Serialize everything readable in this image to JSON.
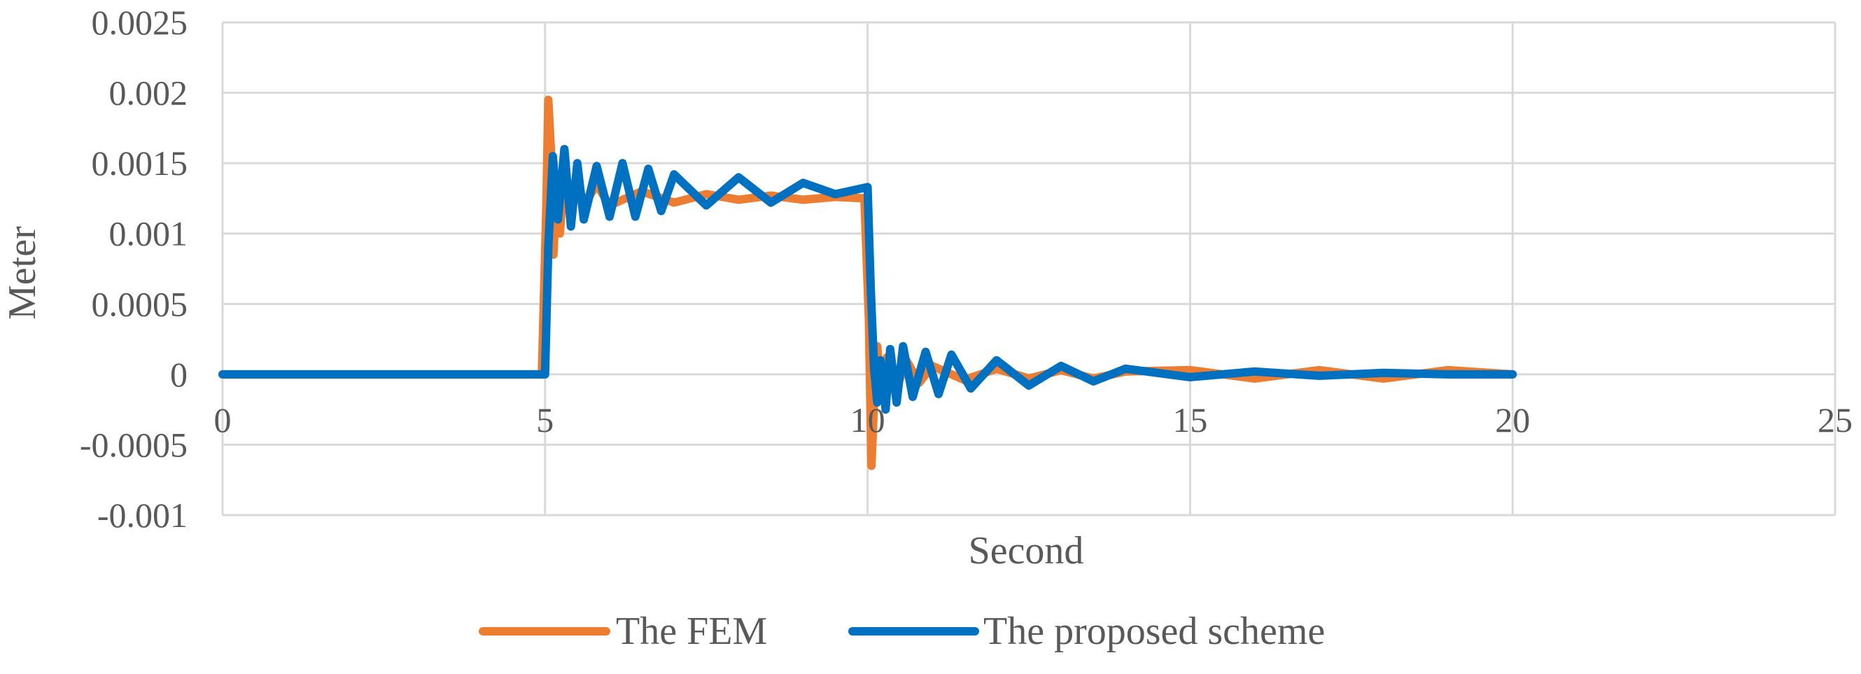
{
  "chart_data": {
    "type": "line",
    "title": "",
    "xlabel": "Second",
    "ylabel": "Meter",
    "xlim": [
      0,
      25
    ],
    "ylim": [
      -0.001,
      0.0025
    ],
    "xticks": [
      0,
      5,
      10,
      15,
      20,
      25
    ],
    "xtick_labels": [
      "0",
      "5",
      "10",
      "15",
      "20",
      "25"
    ],
    "yticks": [
      -0.001,
      -0.0005,
      0,
      0.0005,
      0.001,
      0.0015,
      0.002,
      0.0025
    ],
    "ytick_labels": [
      "-0.001",
      "-0.0005",
      "0",
      "0.0005",
      "0.001",
      "0.0015",
      "0.002",
      "0.0025"
    ],
    "grid": true,
    "legend_position": "bottom",
    "series": [
      {
        "name": "The FEM",
        "color": "#ED7D31",
        "x": [
          0,
          4.95,
          5.02,
          5.05,
          5.09,
          5.13,
          5.18,
          5.23,
          5.3,
          5.4,
          5.5,
          5.6,
          5.8,
          6.0,
          6.5,
          7.0,
          7.5,
          8.0,
          8.5,
          9.0,
          9.5,
          9.95,
          10.02,
          10.06,
          10.1,
          10.15,
          10.2,
          10.3,
          10.45,
          10.6,
          10.8,
          11.0,
          11.5,
          12.0,
          12.5,
          13.0,
          13.5,
          14.0,
          15.0,
          16.0,
          17.0,
          18.0,
          19.0,
          20.0
        ],
        "y": [
          0,
          0,
          0.0012,
          0.00195,
          0.0016,
          0.00085,
          0.0014,
          0.001,
          0.00145,
          0.00115,
          0.0014,
          0.0012,
          0.00135,
          0.0012,
          0.0013,
          0.00122,
          0.00128,
          0.00124,
          0.00127,
          0.00124,
          0.00126,
          0.00125,
          0.0004,
          -0.00065,
          -0.0002,
          0.0002,
          -0.0001,
          0.00012,
          -0.0001,
          0.0001,
          -6e-05,
          6e-05,
          -4e-05,
          4e-05,
          -3e-05,
          3e-05,
          -3e-05,
          2e-05,
          3e-05,
          -3e-05,
          3e-05,
          -3e-05,
          3e-05,
          0
        ]
      },
      {
        "name": "The proposed scheme",
        "color": "#0070C0",
        "x": [
          0,
          5.0,
          5.05,
          5.12,
          5.2,
          5.3,
          5.4,
          5.5,
          5.6,
          5.8,
          6.0,
          6.2,
          6.4,
          6.6,
          6.8,
          7.0,
          7.5,
          8.0,
          8.5,
          9.0,
          9.5,
          10.0,
          10.05,
          10.1,
          10.15,
          10.2,
          10.28,
          10.35,
          10.45,
          10.55,
          10.7,
          10.9,
          11.1,
          11.3,
          11.6,
          12.0,
          12.5,
          13.0,
          13.5,
          14.0,
          15.0,
          16.0,
          17.0,
          18.0,
          19.0,
          20.0
        ],
        "y": [
          0,
          0,
          0.0009,
          0.00155,
          0.0011,
          0.0016,
          0.00105,
          0.0015,
          0.0011,
          0.00148,
          0.00112,
          0.0015,
          0.00112,
          0.00146,
          0.00116,
          0.00142,
          0.0012,
          0.0014,
          0.00122,
          0.00136,
          0.00128,
          0.00133,
          0.0006,
          5e-05,
          -0.0002,
          0.0001,
          -0.00025,
          0.00018,
          -0.0002,
          0.0002,
          -0.00016,
          0.00016,
          -0.00014,
          0.00014,
          -0.0001,
          0.0001,
          -8e-05,
          6e-05,
          -5e-05,
          4e-05,
          -2e-05,
          2e-05,
          -1e-05,
          1e-05,
          0,
          0
        ]
      }
    ]
  }
}
